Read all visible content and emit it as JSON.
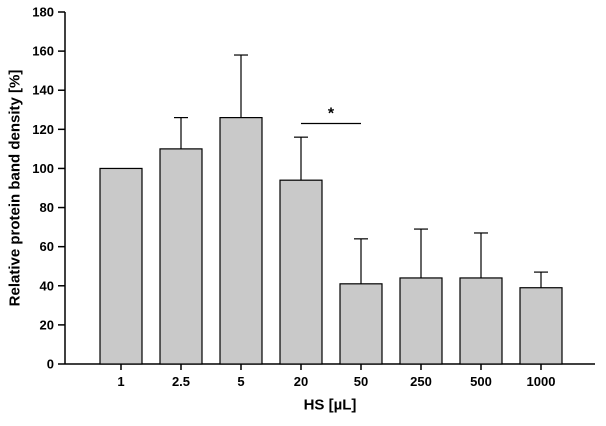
{
  "chart_data": {
    "type": "bar",
    "title": "",
    "xlabel": "HS [µL]",
    "ylabel": "Relative protein band density [%]",
    "categories": [
      "1",
      "2.5",
      "5",
      "20",
      "50",
      "250",
      "500",
      "1000"
    ],
    "values": [
      100,
      110,
      126,
      94,
      41,
      44,
      44,
      39
    ],
    "errors_upper": [
      0,
      16,
      32,
      22,
      23,
      25,
      23,
      8
    ],
    "ylim": [
      0,
      180
    ],
    "yticks": [
      0,
      20,
      40,
      60,
      80,
      100,
      120,
      140,
      160,
      180
    ],
    "grid": false,
    "legend": "none",
    "bar_fill": "#c9c9c9",
    "bar_stroke": "#000000",
    "axis_color": "#000000",
    "annotation": {
      "type": "significance-bracket",
      "from_category": "20",
      "to_category": "50",
      "y_value": 123,
      "label": "*"
    }
  }
}
